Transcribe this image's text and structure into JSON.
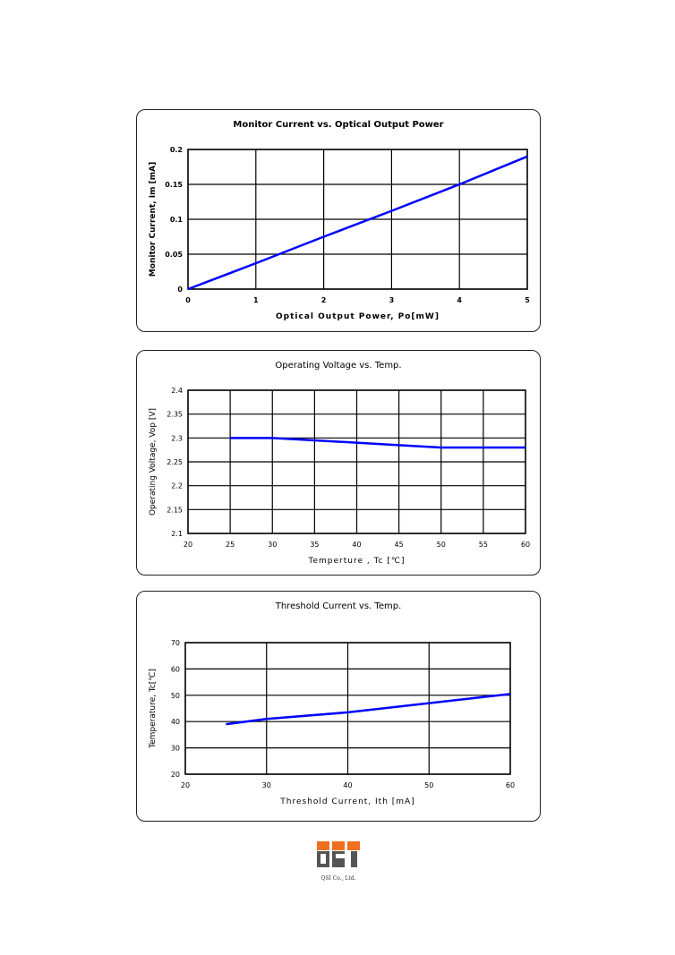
{
  "chart_data": [
    {
      "type": "line",
      "title": "Monitor Current vs. Optical Output Power",
      "xlabel": "Optical Output Power, Po[mW]",
      "ylabel": "Monitor Current, Im [mA]",
      "xlim": [
        0,
        5
      ],
      "ylim": [
        0,
        0.2
      ],
      "xticks": [
        "0",
        "1",
        "2",
        "3",
        "4",
        "5"
      ],
      "yticks": [
        "0",
        "0.05",
        "0.1",
        "0.15",
        "0.2"
      ],
      "grid": true,
      "series": [
        {
          "name": "Im",
          "color": "#0000ff",
          "x": [
            0,
            1,
            2,
            3,
            4,
            5
          ],
          "y": [
            0,
            0.037,
            0.075,
            0.112,
            0.15,
            0.19
          ]
        }
      ]
    },
    {
      "type": "line",
      "title": "Operating Voltage vs. Temp.",
      "xlabel": "Temperture , Tc [℃]",
      "ylabel": "Operating Voltage, Vop [V]",
      "xlim": [
        20,
        60
      ],
      "ylim": [
        2.1,
        2.4
      ],
      "xticks": [
        "20",
        "25",
        "30",
        "35",
        "40",
        "45",
        "50",
        "55",
        "60"
      ],
      "yticks": [
        "2.1",
        "2.15",
        "2.2",
        "2.25",
        "2.3",
        "2.35",
        "2.4"
      ],
      "grid": true,
      "series": [
        {
          "name": "Vop",
          "color": "#0000ff",
          "x": [
            25,
            30,
            35,
            40,
            45,
            50,
            55,
            60
          ],
          "y": [
            2.3,
            2.3,
            2.295,
            2.29,
            2.285,
            2.28,
            2.28,
            2.28
          ]
        }
      ]
    },
    {
      "type": "line",
      "title": "Threshold Current vs. Temp.",
      "xlabel": "Threshold Current, Ith [mA]",
      "ylabel": "Temperature, Tc[℃]",
      "xlim": [
        20,
        60
      ],
      "ylim": [
        20,
        70
      ],
      "xticks": [
        "20",
        "30",
        "40",
        "50",
        "60"
      ],
      "yticks": [
        "20",
        "30",
        "40",
        "50",
        "60",
        "70"
      ],
      "grid": true,
      "series": [
        {
          "name": "Tc",
          "color": "#0000ff",
          "x": [
            25,
            30,
            40,
            50,
            60
          ],
          "y": [
            39,
            41,
            43.5,
            47,
            50.5
          ]
        }
      ]
    }
  ],
  "logo": {
    "text": "QSI",
    "caption": "QSI Co., Ltd."
  }
}
